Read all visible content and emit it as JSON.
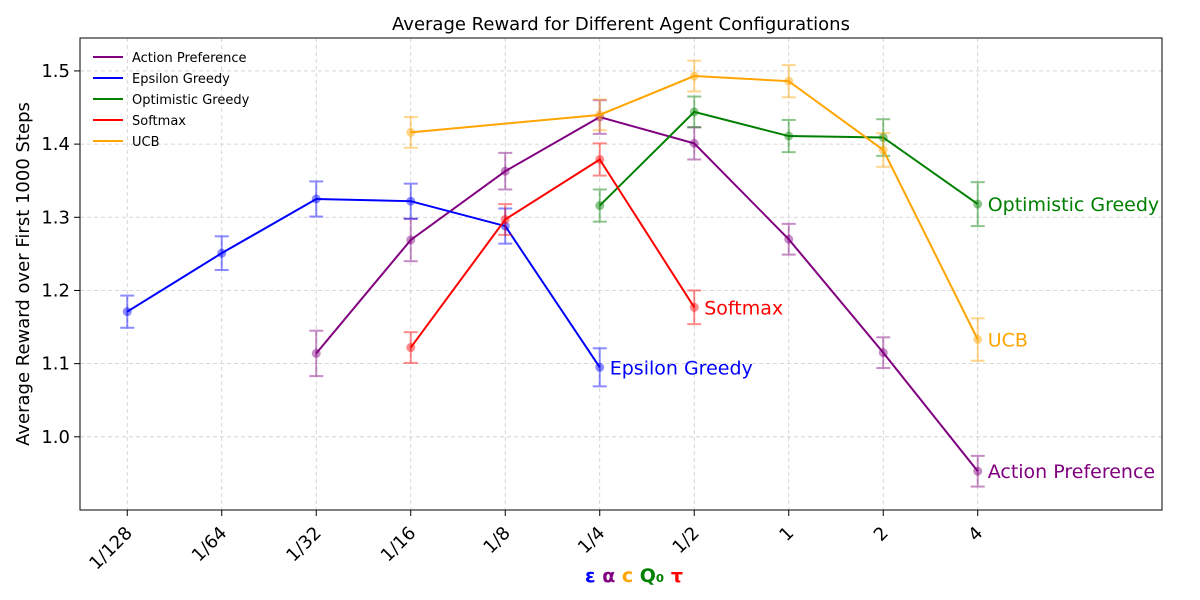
{
  "chart_data": {
    "type": "line",
    "title": "Average Reward for Different Agent Configurations",
    "ylabel": "Average Reward over First 1000 Steps",
    "xlabel_parts": [
      {
        "text": "ε",
        "color": "#0000ff"
      },
      {
        "text": "α",
        "color": "#800080"
      },
      {
        "text": "c",
        "color": "#ffa500"
      },
      {
        "text": "Q₀",
        "color": "#008000"
      },
      {
        "text": "τ",
        "color": "#ff0000"
      }
    ],
    "x_ticks": [
      "1/128",
      "1/64",
      "1/32",
      "1/16",
      "1/8",
      "1/4",
      "1/2",
      "1",
      "2",
      "4"
    ],
    "y_ticks": [
      "1.0",
      "1.1",
      "1.2",
      "1.3",
      "1.4",
      "1.5"
    ],
    "ylim": [
      0.9,
      1.545
    ],
    "xlim": [
      -0.5,
      10.95
    ],
    "grid": true,
    "legend_position": "top-left",
    "series": [
      {
        "name": "Action Preference",
        "color": "#800080",
        "x": [
          2,
          3,
          4,
          5,
          6,
          7,
          8,
          9
        ],
        "y": [
          1.114,
          1.269,
          1.363,
          1.437,
          1.401,
          1.27,
          1.115,
          0.953
        ],
        "err": [
          0.031,
          0.029,
          0.025,
          0.023,
          0.022,
          0.021,
          0.021,
          0.021
        ],
        "label": "Action Preference"
      },
      {
        "name": "Epsilon Greedy",
        "color": "#0000ff",
        "x": [
          0,
          1,
          2,
          3,
          4,
          5
        ],
        "y": [
          1.171,
          1.251,
          1.325,
          1.322,
          1.288,
          1.095
        ],
        "err": [
          0.022,
          0.023,
          0.024,
          0.024,
          0.024,
          0.026
        ],
        "label": "Epsilon Greedy"
      },
      {
        "name": "Optimistic Greedy",
        "color": "#008000",
        "x": [
          5,
          6,
          7,
          8,
          9
        ],
        "y": [
          1.316,
          1.444,
          1.411,
          1.409,
          1.318
        ],
        "err": [
          0.022,
          0.021,
          0.022,
          0.025,
          0.03
        ],
        "label": "Optimistic Greedy"
      },
      {
        "name": "Softmax",
        "color": "#ff0000",
        "x": [
          3,
          4,
          5,
          6
        ],
        "y": [
          1.122,
          1.297,
          1.379,
          1.177
        ],
        "err": [
          0.021,
          0.021,
          0.022,
          0.023
        ],
        "label": "Softmax"
      },
      {
        "name": "UCB",
        "color": "#ffa500",
        "x": [
          3,
          5,
          6,
          7,
          8,
          9
        ],
        "y": [
          1.416,
          1.44,
          1.493,
          1.486,
          1.392,
          1.133
        ],
        "err": [
          0.021,
          0.021,
          0.021,
          0.022,
          0.023,
          0.029
        ],
        "label": "UCB"
      }
    ]
  }
}
